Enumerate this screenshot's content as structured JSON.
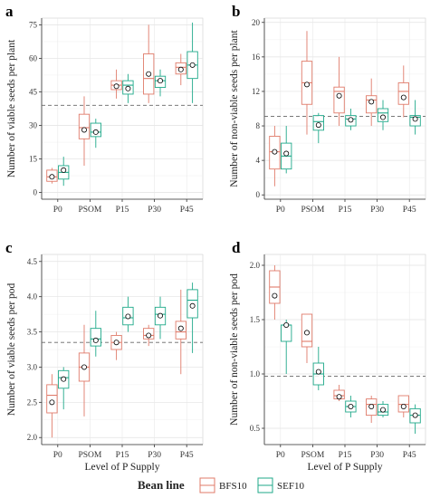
{
  "colors": {
    "bfs": "#E07B6A",
    "sef": "#1FA98A",
    "grid": "#dddddd",
    "axis": "#333333",
    "refline": "#666666"
  },
  "legend": {
    "title": "Bean line",
    "items": [
      "BFS10",
      "SEF10"
    ]
  },
  "chart_data": [
    {
      "type": "boxplot",
      "panel_label": "a",
      "ylabel": "Number of viable seeds per plant",
      "xlabel": "",
      "categories": [
        "P0",
        "PSOM",
        "P15",
        "P30",
        "P45"
      ],
      "ylim": [
        -3,
        78
      ],
      "yticks": [
        0,
        15,
        30,
        45,
        60,
        75
      ],
      "reference_line": 39,
      "series": [
        {
          "name": "BFS10",
          "boxes": [
            {
              "min": 4,
              "q1": 5,
              "median": 7,
              "q3": 10,
              "max": 11,
              "mean": 7
            },
            {
              "min": 12,
              "q1": 24,
              "median": 29,
              "q3": 35,
              "max": 43,
              "mean": 28
            },
            {
              "min": 42,
              "q1": 46,
              "median": 48,
              "q3": 50,
              "max": 55,
              "mean": 47.5
            },
            {
              "min": 40,
              "q1": 44,
              "median": 51,
              "q3": 62,
              "max": 75,
              "mean": 53
            },
            {
              "min": 48,
              "q1": 53,
              "median": 56,
              "q3": 58,
              "max": 62,
              "mean": 55
            }
          ]
        },
        {
          "name": "SEF10",
          "boxes": [
            {
              "min": 3,
              "q1": 6,
              "median": 9,
              "q3": 12,
              "max": 16,
              "mean": 10
            },
            {
              "min": 20,
              "q1": 25,
              "median": 27,
              "q3": 31,
              "max": 33,
              "mean": 27
            },
            {
              "min": 40,
              "q1": 44,
              "median": 48,
              "q3": 50,
              "max": 53,
              "mean": 46.5
            },
            {
              "min": 43,
              "q1": 47,
              "median": 50,
              "q3": 52,
              "max": 55,
              "mean": 50
            },
            {
              "min": 40,
              "q1": 51,
              "median": 57,
              "q3": 63,
              "max": 76,
              "mean": 57
            }
          ]
        }
      ]
    },
    {
      "type": "boxplot",
      "panel_label": "b",
      "ylabel": "Number of non-viable seeds per plant",
      "xlabel": "",
      "categories": [
        "P0",
        "PSOM",
        "P15",
        "P30",
        "P45"
      ],
      "ylim": [
        -0.5,
        20.5
      ],
      "yticks": [
        0,
        4,
        8,
        12,
        16,
        20
      ],
      "reference_line": 9.1,
      "series": [
        {
          "name": "BFS10",
          "boxes": [
            {
              "min": 1,
              "q1": 3,
              "median": 5,
              "q3": 6.8,
              "max": 8,
              "mean": 5
            },
            {
              "min": 7,
              "q1": 10.5,
              "median": 13,
              "q3": 15.5,
              "max": 19,
              "mean": 12.8
            },
            {
              "min": 8,
              "q1": 9.5,
              "median": 12,
              "q3": 12.5,
              "max": 16,
              "mean": 11.5
            },
            {
              "min": 8,
              "q1": 9.5,
              "median": 11,
              "q3": 11.5,
              "max": 13.5,
              "mean": 10.8
            },
            {
              "min": 9,
              "q1": 10.5,
              "median": 12,
              "q3": 13,
              "max": 15,
              "mean": 11.3
            }
          ]
        },
        {
          "name": "SEF10",
          "boxes": [
            {
              "min": 2.5,
              "q1": 3,
              "median": 4.5,
              "q3": 6,
              "max": 8,
              "mean": 4.8
            },
            {
              "min": 6,
              "q1": 7.5,
              "median": 8.5,
              "q3": 9.2,
              "max": 9.5,
              "mean": 8.1
            },
            {
              "min": 7.5,
              "q1": 8,
              "median": 8.8,
              "q3": 9.2,
              "max": 10,
              "mean": 8.7
            },
            {
              "min": 7.5,
              "q1": 8.5,
              "median": 9.5,
              "q3": 10,
              "max": 11,
              "mean": 9
            },
            {
              "min": 7,
              "q1": 8,
              "median": 9,
              "q3": 9.2,
              "max": 11,
              "mean": 8.8
            }
          ]
        }
      ]
    },
    {
      "type": "boxplot",
      "panel_label": "c",
      "ylabel": "Number of viable seeds per pod",
      "xlabel": "Level of P Supply",
      "categories": [
        "P0",
        "PSOM",
        "P15",
        "P30",
        "P45"
      ],
      "ylim": [
        1.9,
        4.6
      ],
      "yticks": [
        2.0,
        2.5,
        3.0,
        3.5,
        4.0,
        4.5
      ],
      "reference_line": 3.35,
      "series": [
        {
          "name": "BFS10",
          "boxes": [
            {
              "min": 2.0,
              "q1": 2.35,
              "median": 2.6,
              "q3": 2.75,
              "max": 2.9,
              "mean": 2.5
            },
            {
              "min": 2.3,
              "q1": 2.8,
              "median": 3.0,
              "q3": 3.2,
              "max": 3.6,
              "mean": 3.0
            },
            {
              "min": 3.1,
              "q1": 3.25,
              "median": 3.35,
              "q3": 3.45,
              "max": 3.5,
              "mean": 3.35
            },
            {
              "min": 3.3,
              "q1": 3.4,
              "median": 3.45,
              "q3": 3.55,
              "max": 3.6,
              "mean": 3.45
            },
            {
              "min": 2.9,
              "q1": 3.4,
              "median": 3.5,
              "q3": 3.65,
              "max": 4.1,
              "mean": 3.55
            }
          ]
        },
        {
          "name": "SEF10",
          "boxes": [
            {
              "min": 2.4,
              "q1": 2.7,
              "median": 2.85,
              "q3": 2.95,
              "max": 3.0,
              "mean": 2.83
            },
            {
              "min": 3.15,
              "q1": 3.3,
              "median": 3.4,
              "q3": 3.55,
              "max": 3.8,
              "mean": 3.38
            },
            {
              "min": 3.5,
              "q1": 3.6,
              "median": 3.7,
              "q3": 3.85,
              "max": 4.0,
              "mean": 3.72
            },
            {
              "min": 3.4,
              "q1": 3.6,
              "median": 3.75,
              "q3": 3.85,
              "max": 4.0,
              "mean": 3.73
            },
            {
              "min": 3.2,
              "q1": 3.7,
              "median": 3.95,
              "q3": 4.1,
              "max": 4.2,
              "mean": 3.87
            }
          ]
        }
      ]
    },
    {
      "type": "boxplot",
      "panel_label": "d",
      "ylabel": "Number of non-viable seeds per pod",
      "xlabel": "Level of P Supply",
      "categories": [
        "P0",
        "PSOM",
        "P15",
        "P30",
        "P45"
      ],
      "ylim": [
        0.35,
        2.1
      ],
      "yticks": [
        0.5,
        1.0,
        1.5,
        2.0
      ],
      "reference_line": 0.98,
      "series": [
        {
          "name": "BFS10",
          "boxes": [
            {
              "min": 1.5,
              "q1": 1.65,
              "median": 1.8,
              "q3": 1.95,
              "max": 2.0,
              "mean": 1.72
            },
            {
              "min": 1.1,
              "q1": 1.25,
              "median": 1.3,
              "q3": 1.55,
              "max": 1.55,
              "mean": 1.38
            },
            {
              "min": 0.75,
              "q1": 0.77,
              "median": 0.8,
              "q3": 0.85,
              "max": 0.9,
              "mean": 0.79
            },
            {
              "min": 0.55,
              "q1": 0.62,
              "median": 0.72,
              "q3": 0.77,
              "max": 0.8,
              "mean": 0.7
            },
            {
              "min": 0.6,
              "q1": 0.65,
              "median": 0.72,
              "q3": 0.8,
              "max": 0.8,
              "mean": 0.7
            }
          ]
        },
        {
          "name": "SEF10",
          "boxes": [
            {
              "min": 1.0,
              "q1": 1.3,
              "median": 1.45,
              "q3": 1.45,
              "max": 1.5,
              "mean": 1.45
            },
            {
              "min": 0.85,
              "q1": 0.9,
              "median": 1.0,
              "q3": 1.1,
              "max": 1.25,
              "mean": 1.02
            },
            {
              "min": 0.6,
              "q1": 0.65,
              "median": 0.7,
              "q3": 0.75,
              "max": 0.8,
              "mean": 0.7
            },
            {
              "min": 0.6,
              "q1": 0.62,
              "median": 0.65,
              "q3": 0.72,
              "max": 0.75,
              "mean": 0.67
            },
            {
              "min": 0.45,
              "q1": 0.55,
              "median": 0.62,
              "q3": 0.68,
              "max": 0.72,
              "mean": 0.62
            }
          ]
        }
      ]
    }
  ]
}
